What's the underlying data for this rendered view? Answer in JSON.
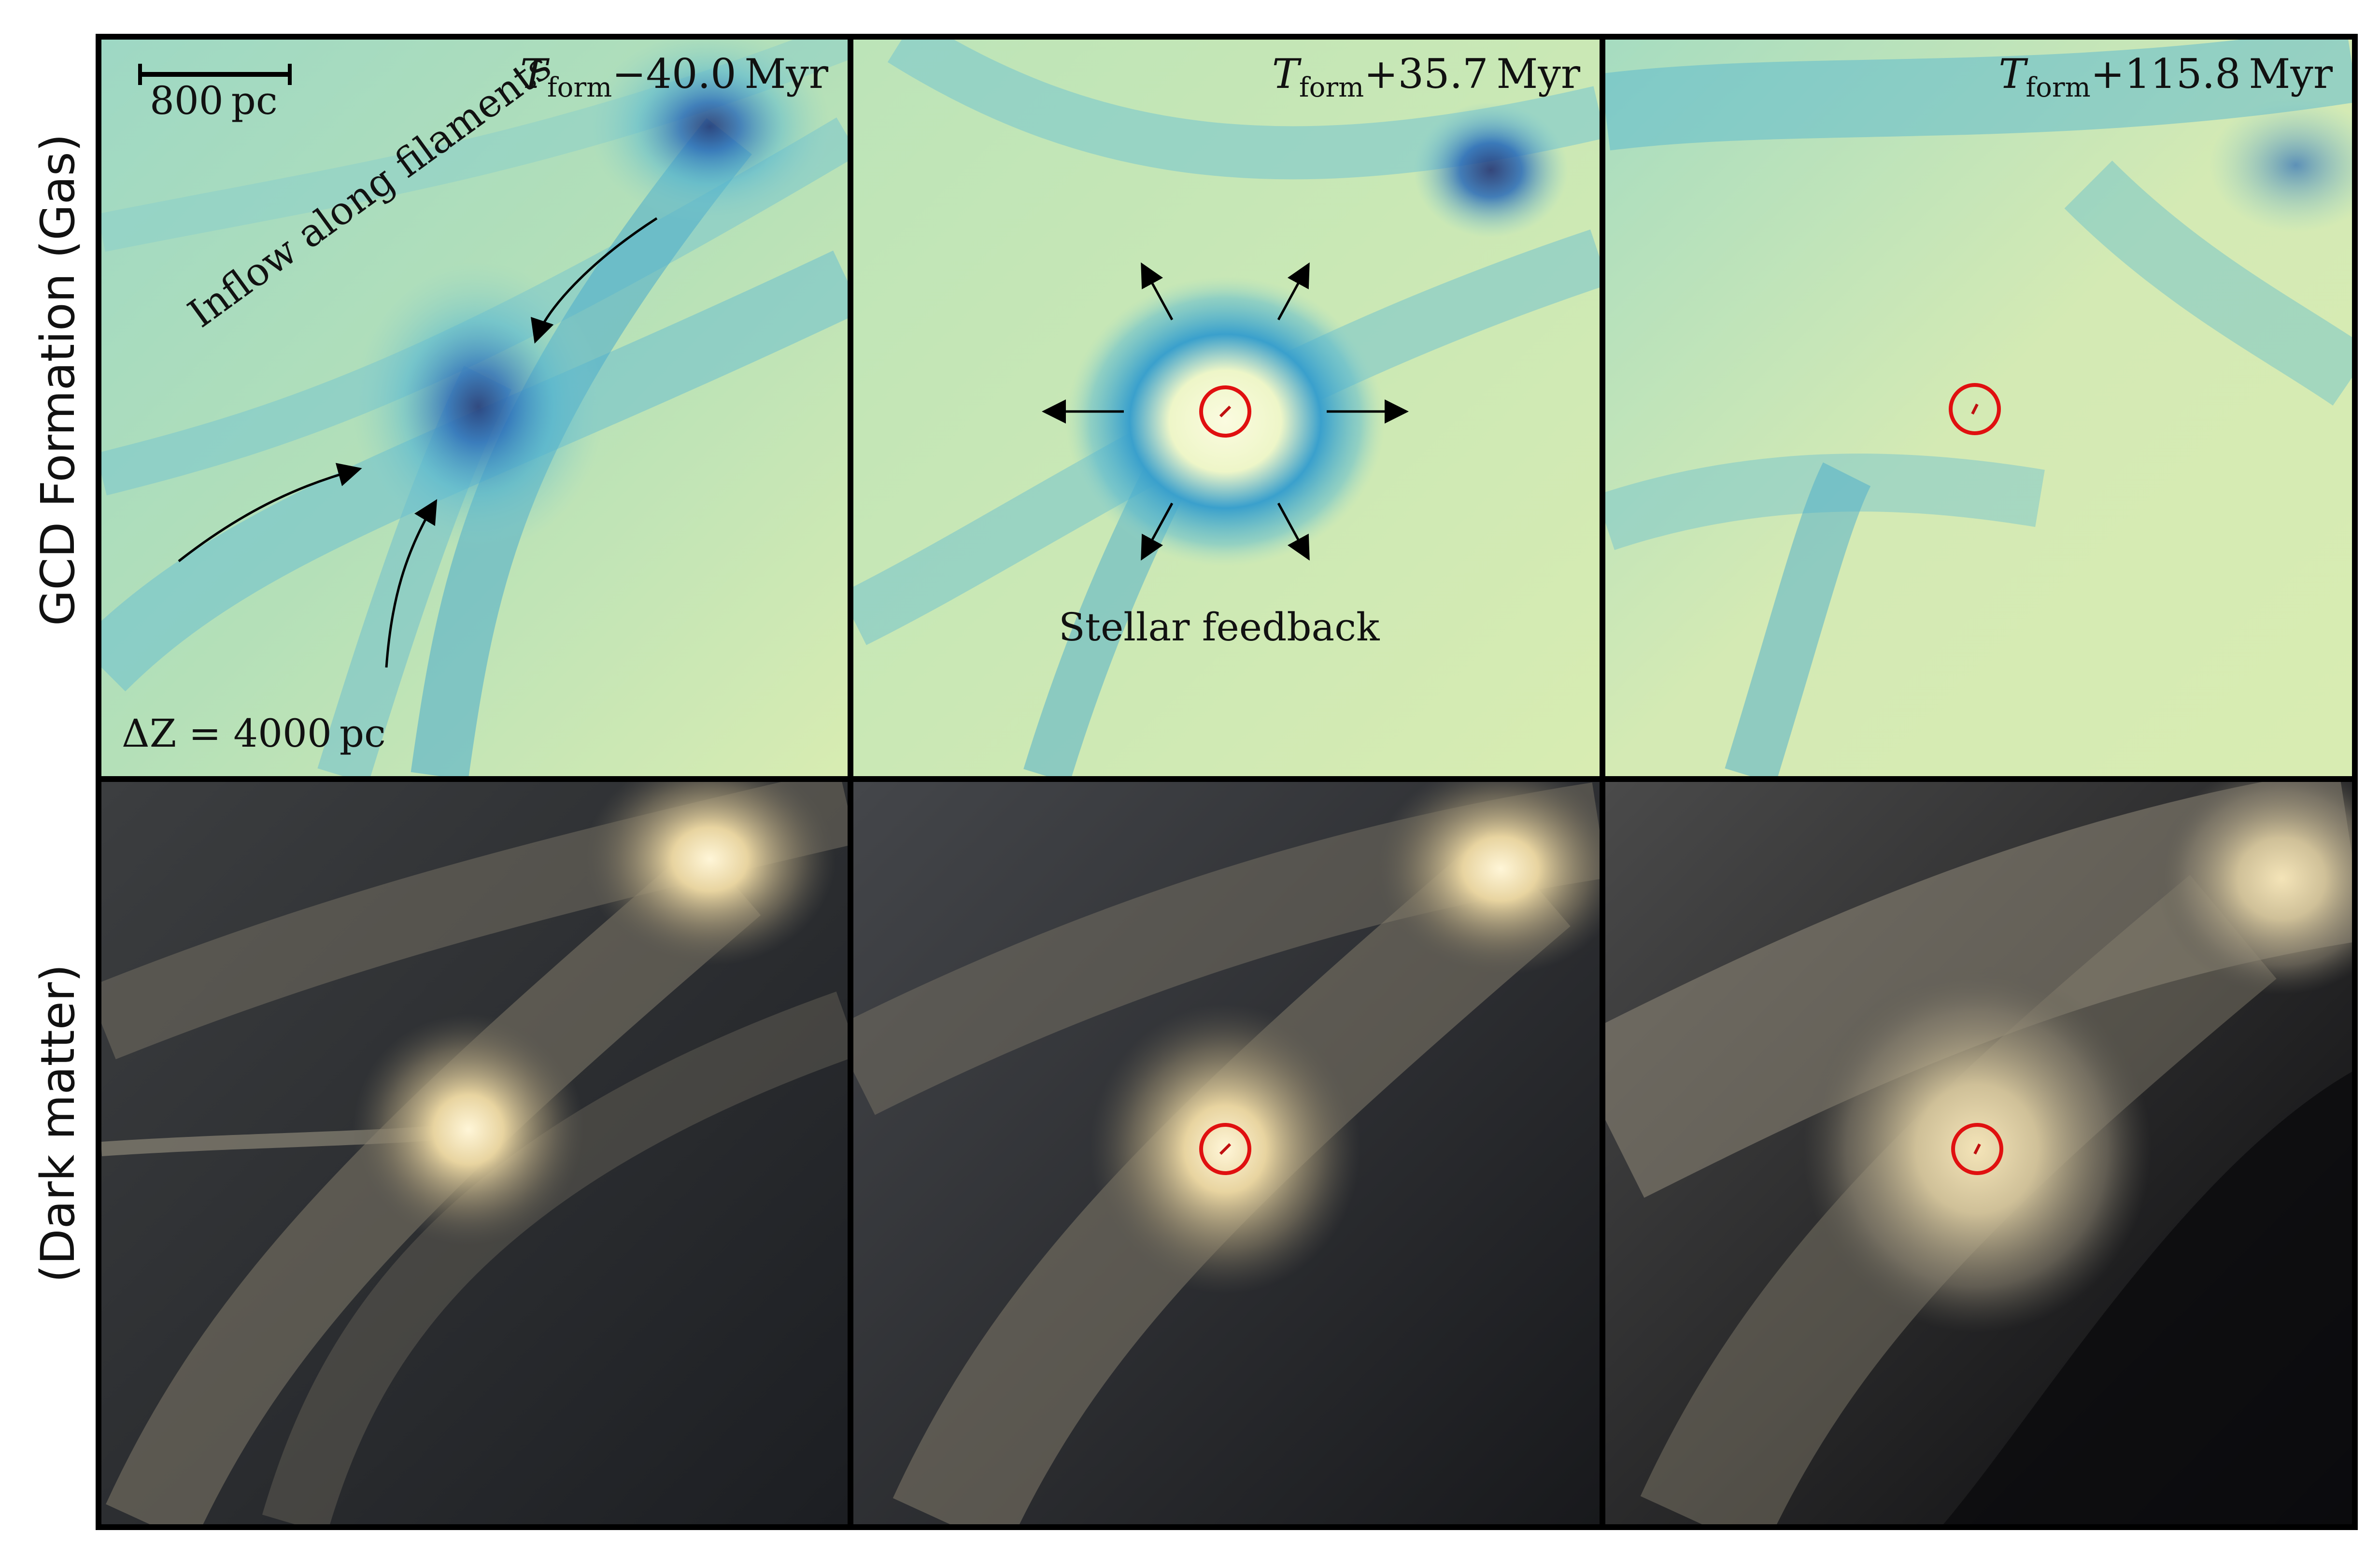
{
  "row_labels": {
    "gas": "GCD Formation (Gas)",
    "dark_matter": "(Dark matter)"
  },
  "panels": {
    "gas": [
      {
        "symbol": "T",
        "subscript": "form",
        "offset": "−40.0 Myr"
      },
      {
        "symbol": "T",
        "subscript": "form",
        "offset": "+35.7 Myr"
      },
      {
        "symbol": "T",
        "subscript": "form",
        "offset": "+115.8 Myr"
      }
    ]
  },
  "annotations": {
    "scale_bar": "800 pc",
    "depth": "ΔZ = 4000 pc",
    "inflow": "Inflow along filaments",
    "feedback": "Stellar feedback"
  },
  "colors": {
    "gas_light": "#dcecb4",
    "gas_mid": "#58b8d0",
    "gas_dark": "#1a3a8a",
    "dm_dark": "#1c1e22",
    "dm_light": "#efe0b0",
    "marker": "#e01010"
  }
}
